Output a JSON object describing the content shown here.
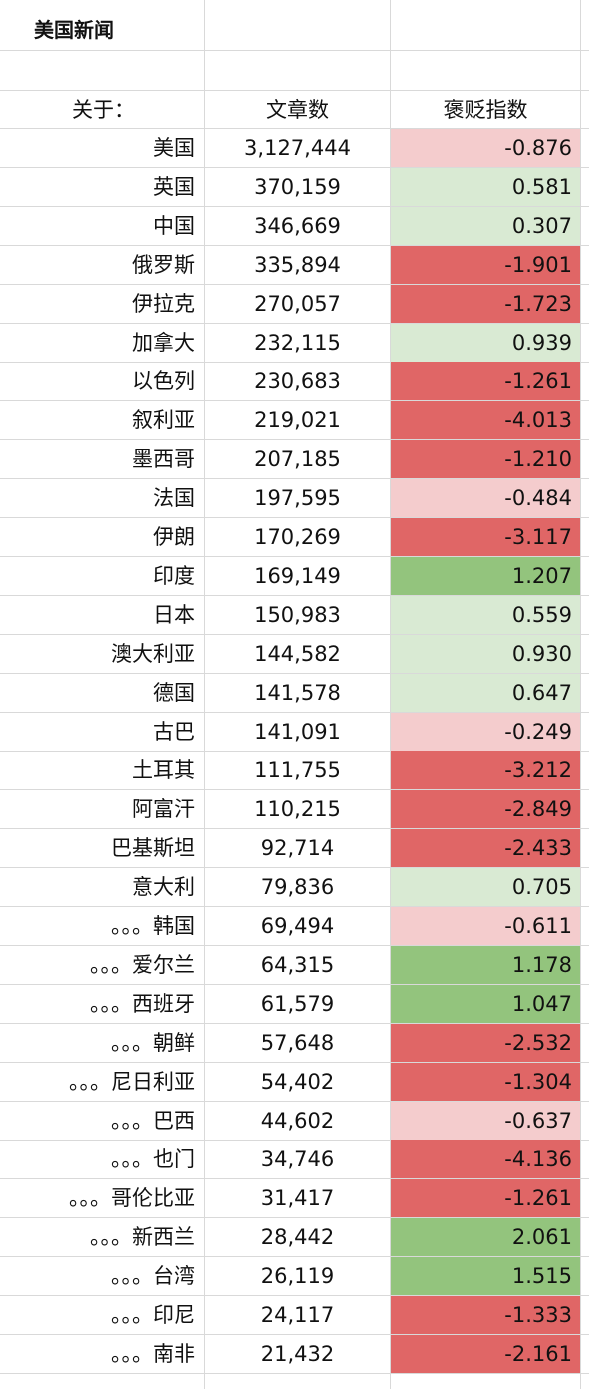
{
  "title": "美国新闻",
  "headers": {
    "about": "关于：",
    "articles": "文章数",
    "index": "褒贬指数"
  },
  "colors": {
    "light_red": "#f4cccd",
    "red": "#e06666",
    "light_green": "#d9ead3",
    "green": "#93c47d",
    "grid": "#d9d9d9"
  },
  "rows": [
    {
      "country": "美国",
      "articles": "3,127,444",
      "index": "-0.876",
      "color": "light_red"
    },
    {
      "country": "英国",
      "articles": "370,159",
      "index": "0.581",
      "color": "light_green"
    },
    {
      "country": "中国",
      "articles": "346,669",
      "index": "0.307",
      "color": "light_green"
    },
    {
      "country": "俄罗斯",
      "articles": "335,894",
      "index": "-1.901",
      "color": "red"
    },
    {
      "country": "伊拉克",
      "articles": "270,057",
      "index": "-1.723",
      "color": "red"
    },
    {
      "country": "加拿大",
      "articles": "232,115",
      "index": "0.939",
      "color": "light_green"
    },
    {
      "country": "以色列",
      "articles": "230,683",
      "index": "-1.261",
      "color": "red"
    },
    {
      "country": "叙利亚",
      "articles": "219,021",
      "index": "-4.013",
      "color": "red"
    },
    {
      "country": "墨西哥",
      "articles": "207,185",
      "index": "-1.210",
      "color": "red"
    },
    {
      "country": "法国",
      "articles": "197,595",
      "index": "-0.484",
      "color": "light_red"
    },
    {
      "country": "伊朗",
      "articles": "170,269",
      "index": "-3.117",
      "color": "red"
    },
    {
      "country": "印度",
      "articles": "169,149",
      "index": "1.207",
      "color": "green"
    },
    {
      "country": "日本",
      "articles": "150,983",
      "index": "0.559",
      "color": "light_green"
    },
    {
      "country": "澳大利亚",
      "articles": "144,582",
      "index": "0.930",
      "color": "light_green"
    },
    {
      "country": "德国",
      "articles": "141,578",
      "index": "0.647",
      "color": "light_green"
    },
    {
      "country": "古巴",
      "articles": "141,091",
      "index": "-0.249",
      "color": "light_red"
    },
    {
      "country": "土耳其",
      "articles": "111,755",
      "index": "-3.212",
      "color": "red"
    },
    {
      "country": "阿富汗",
      "articles": "110,215",
      "index": "-2.849",
      "color": "red"
    },
    {
      "country": "巴基斯坦",
      "articles": "92,714",
      "index": "-2.433",
      "color": "red"
    },
    {
      "country": "意大利",
      "articles": "79,836",
      "index": "0.705",
      "color": "light_green"
    },
    {
      "country": "。。。韩国",
      "articles": "69,494",
      "index": "-0.611",
      "color": "light_red"
    },
    {
      "country": "。。。爱尔兰",
      "articles": "64,315",
      "index": "1.178",
      "color": "green"
    },
    {
      "country": "。。。西班牙",
      "articles": "61,579",
      "index": "1.047",
      "color": "green"
    },
    {
      "country": "。。。朝鲜",
      "articles": "57,648",
      "index": "-2.532",
      "color": "red"
    },
    {
      "country": "。。。尼日利亚",
      "articles": "54,402",
      "index": "-1.304",
      "color": "red"
    },
    {
      "country": "。。。巴西",
      "articles": "44,602",
      "index": "-0.637",
      "color": "light_red"
    },
    {
      "country": "。。。也门",
      "articles": "34,746",
      "index": "-4.136",
      "color": "red"
    },
    {
      "country": "。。。哥伦比亚",
      "articles": "31,417",
      "index": "-1.261",
      "color": "red"
    },
    {
      "country": "。。。新西兰",
      "articles": "28,442",
      "index": "2.061",
      "color": "green"
    },
    {
      "country": "。。。台湾",
      "articles": "26,119",
      "index": "1.515",
      "color": "green"
    },
    {
      "country": "。。。印尼",
      "articles": "24,117",
      "index": "-1.333",
      "color": "red"
    },
    {
      "country": "。。。南非",
      "articles": "21,432",
      "index": "-2.161",
      "color": "red"
    }
  ]
}
